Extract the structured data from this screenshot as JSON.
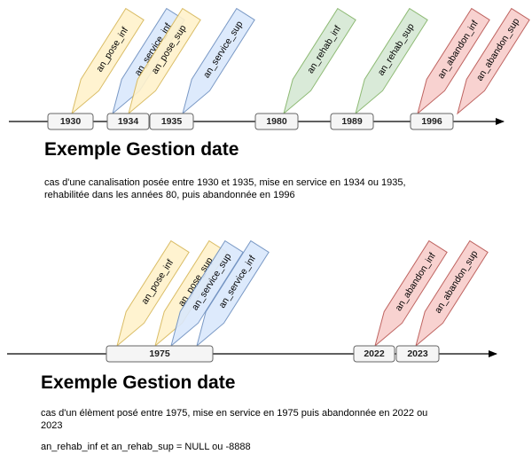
{
  "colors": {
    "yellow": {
      "fill": "#fff2cc",
      "stroke": "#d6b656"
    },
    "blue": {
      "fill": "#dae8fc",
      "stroke": "#6c8ebf"
    },
    "green": {
      "fill": "#d5e8d4",
      "stroke": "#82b366"
    },
    "red": {
      "fill": "#f8cecc",
      "stroke": "#b85450"
    },
    "box": {
      "fill": "#f5f5f5",
      "stroke": "#666666"
    }
  },
  "example1": {
    "title": "Exemple Gestion date",
    "description": "cas d'une canalisation posée entre 1930 et 1935, mise en service en 1934 ou 1935, rehabilitée dans les années 80, puis abandonnée en 1996",
    "dates": [
      "1930",
      "1934",
      "1935",
      "1980",
      "1989",
      "1996"
    ],
    "markers": [
      {
        "label": "an_pose_inf",
        "color": "yellow"
      },
      {
        "label": "an_service_inf",
        "color": "blue"
      },
      {
        "label": "an_pose_sup",
        "color": "yellow"
      },
      {
        "label": "an_service_sup",
        "color": "blue"
      },
      {
        "label": "an_rehab_inf",
        "color": "green"
      },
      {
        "label": "an_rehab_sup",
        "color": "green"
      },
      {
        "label": "an_abandon_inf",
        "color": "red"
      },
      {
        "label": "an_abandon_sup",
        "color": "red"
      }
    ]
  },
  "example2": {
    "title": "Exemple Gestion date",
    "description": "cas d'un élèment posé entre 1975, mise en service en 1975 puis abandonnée en 2022 ou 2023",
    "note": "an_rehab_inf  et an_rehab_sup = NULL ou -8888",
    "dates": [
      "1975",
      "2022",
      "2023"
    ],
    "markers": [
      {
        "label": "an_pose_inf",
        "color": "yellow"
      },
      {
        "label": "an_pose_sup",
        "color": "yellow"
      },
      {
        "label": "an_service_sup",
        "color": "blue"
      },
      {
        "label": "an_service_inf",
        "color": "blue"
      },
      {
        "label": "an_abandon_inf",
        "color": "red"
      },
      {
        "label": "an_abandon_sup",
        "color": "red"
      }
    ]
  }
}
